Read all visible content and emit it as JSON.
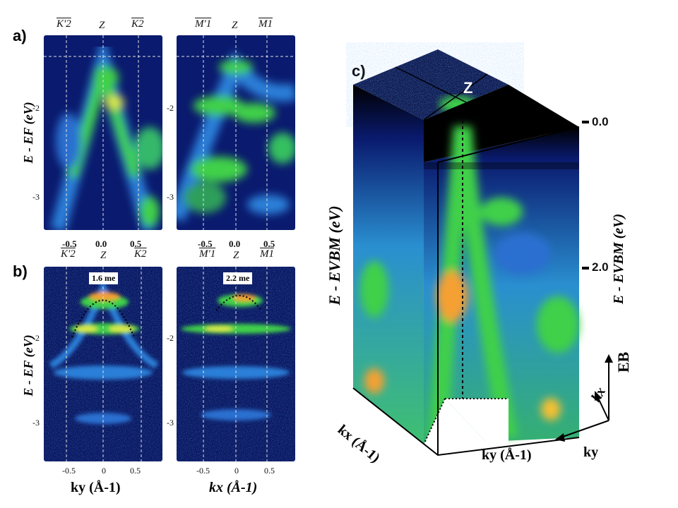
{
  "panel_labels": {
    "a": "a)",
    "b": "b)",
    "c": "c)"
  },
  "panel_a": {
    "left": {
      "top_labels": {
        "left": "K'2",
        "center": "Z",
        "right": "K2"
      },
      "y_ticks": [
        "-2",
        "-3"
      ],
      "x_ticks": [
        "-0.5",
        "0.0",
        "0.5"
      ]
    },
    "right": {
      "top_labels": {
        "left": "M'1",
        "center": "Z",
        "right": "M1"
      },
      "y_ticks": [
        "-2",
        "-3"
      ],
      "x_ticks": [
        "-0.5",
        "0.0",
        "0.5"
      ]
    },
    "y_axis_label": "E - EF (eV)"
  },
  "panel_b": {
    "left": {
      "top_labels": {
        "left": "K'2",
        "center": "Z",
        "right": "K2"
      },
      "mass_label": "1.6 me",
      "y_ticks": [
        "-2",
        "-3"
      ],
      "x_ticks": [
        "-0.5",
        "0",
        "0.5"
      ],
      "x_axis_label": "ky (Å-1)"
    },
    "right": {
      "top_labels": {
        "left": "M'1",
        "center": "Z",
        "right": "M1"
      },
      "mass_label": "2.2 me",
      "y_ticks": [
        "-2",
        "-3"
      ],
      "x_ticks": [
        "-0.5",
        "0",
        "0.5"
      ],
      "x_axis_label": "kx (Å-1)"
    },
    "y_axis_label": "E - EF (eV)"
  },
  "panel_c": {
    "z_label": "Z",
    "ticks": [
      "0.0",
      "2.0"
    ],
    "left_axis_label": "E - EVBM (eV)",
    "right_axis_label": "E - EVBM (eV)",
    "kx_label": "kx (Å-1)",
    "ky_label": "ky (Å-1)",
    "triad": {
      "eb": "EB",
      "kx": "kx",
      "ky": "ky"
    }
  },
  "colors": {
    "map_bg": "#0a1a6e",
    "map_green": "#3fd04a",
    "map_yellow": "#f5e43a",
    "map_orange": "#f5a030",
    "dashed": "#dddddd"
  }
}
